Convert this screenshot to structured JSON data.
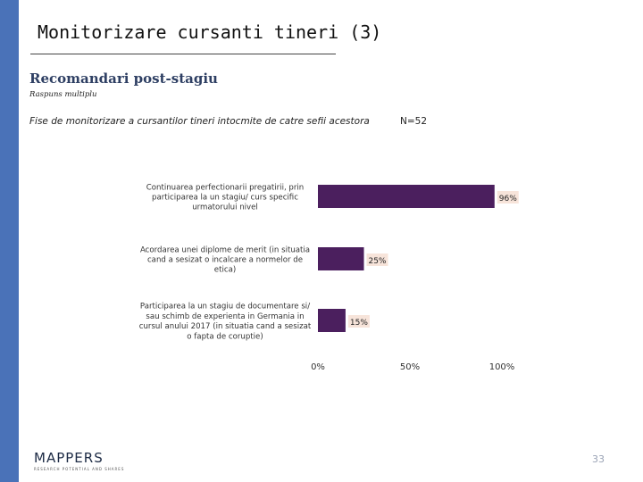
{
  "slide": {
    "title": "Monitorizare cursanti tineri (3)",
    "subtitle": "Recomandari post-stagiu",
    "note": "Raspuns multiplu",
    "question": "Fise de monitorizare a cursantilor tineri intocmite de catre sefii acestora",
    "sample": "N=52",
    "page_number": "33",
    "logo": {
      "word": "MAPPERS",
      "tagline": "RESEARCH POTENTIAL AND SHARES"
    },
    "colors": {
      "sidebar": "#4a72b8",
      "bar": "#4b1f5e",
      "label_bg": "#f7e4da"
    }
  },
  "chart_data": {
    "type": "bar",
    "orientation": "horizontal",
    "categories": [
      [
        "Continuarea perfectionarii pregatirii, prin",
        "participarea la un stagiu/ curs specific",
        "urmatorului nivel"
      ],
      [
        "Acordarea unei diplome de merit (in situatia",
        "cand a sesizat o incalcare a normelor de",
        "etica)"
      ],
      [
        "Participarea la un stagiu de documentare si/",
        "sau schimb de experienta in Germania in",
        "cursul anului 2017 (in situatia cand a sesizat",
        "o fapta de coruptie)"
      ]
    ],
    "values": [
      96,
      25,
      15
    ],
    "value_labels": [
      "96%",
      "25%",
      "15%"
    ],
    "xlim": [
      0,
      100
    ],
    "xticks": [
      0,
      50,
      100
    ],
    "xtick_labels": [
      "0%",
      "50%",
      "100%"
    ],
    "grid": false,
    "legend": "none"
  }
}
